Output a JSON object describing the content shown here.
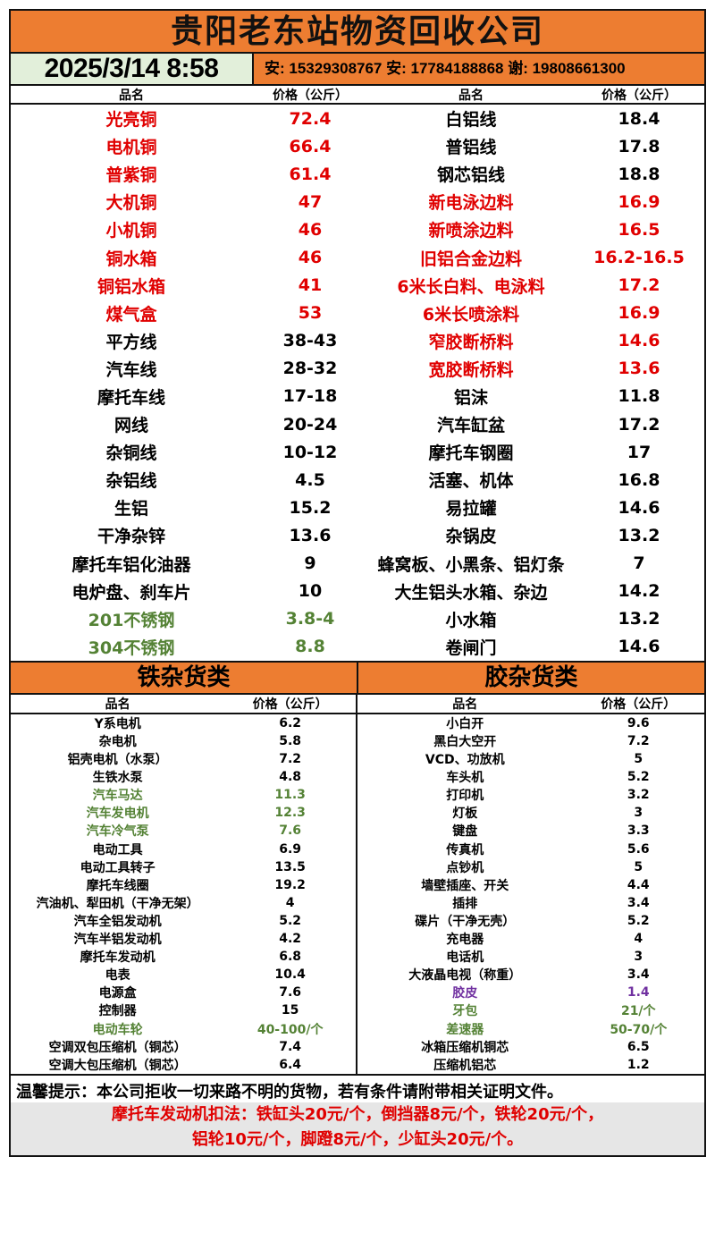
{
  "title": "贵阳老东站物资回收公司",
  "datetime": "2025/3/14 8:58",
  "phones": "安: 15329308767 安: 17784188868 谢: 19808661300",
  "colors": {
    "accent": "#ed7d31",
    "red": "#e00000",
    "green": "#548235",
    "purple": "#7030a0",
    "date_bg": "#e2efda"
  },
  "headers": {
    "name": "品名",
    "price": "价格（公斤）"
  },
  "top_rows": [
    {
      "n1": "光亮铜",
      "p1": "72.4",
      "c1": "red",
      "n2": "白铝线",
      "p2": "18.4",
      "c2": ""
    },
    {
      "n1": "电机铜",
      "p1": "66.4",
      "c1": "red",
      "n2": "普铝线",
      "p2": "17.8",
      "c2": ""
    },
    {
      "n1": "普紫铜",
      "p1": "61.4",
      "c1": "red",
      "n2": "钢芯铝线",
      "p2": "18.8",
      "c2": ""
    },
    {
      "n1": "大机铜",
      "p1": "47",
      "c1": "red",
      "n2": "新电泳边料",
      "p2": "16.9",
      "c2": "red"
    },
    {
      "n1": "小机铜",
      "p1": "46",
      "c1": "red",
      "n2": "新喷涂边料",
      "p2": "16.5",
      "c2": "red"
    },
    {
      "n1": "铜水箱",
      "p1": "46",
      "c1": "red",
      "n2": "旧铝合金边料",
      "p2": "16.2-16.5",
      "c2": "red"
    },
    {
      "n1": "铜铝水箱",
      "p1": "41",
      "c1": "red",
      "n2": "6米长白料、电泳料",
      "p2": "17.2",
      "c2": "red"
    },
    {
      "n1": "煤气盒",
      "p1": "53",
      "c1": "red",
      "n2": "6米长喷涂料",
      "p2": "16.9",
      "c2": "red"
    },
    {
      "n1": "平方线",
      "p1": "38-43",
      "c1": "",
      "n2": "窄胶断桥料",
      "p2": "14.6",
      "c2": "red"
    },
    {
      "n1": "汽车线",
      "p1": "28-32",
      "c1": "",
      "n2": "宽胶断桥料",
      "p2": "13.6",
      "c2": "red"
    },
    {
      "n1": "摩托车线",
      "p1": "17-18",
      "c1": "",
      "n2": "铝沫",
      "p2": "11.8",
      "c2": ""
    },
    {
      "n1": "网线",
      "p1": "20-24",
      "c1": "",
      "n2": "汽车缸盆",
      "p2": "17.2",
      "c2": ""
    },
    {
      "n1": "杂铜线",
      "p1": "10-12",
      "c1": "",
      "n2": "摩托车钢圈",
      "p2": "17",
      "c2": ""
    },
    {
      "n1": "杂铝线",
      "p1": "4.5",
      "c1": "",
      "n2": "活塞、机体",
      "p2": "16.8",
      "c2": ""
    },
    {
      "n1": "生铝",
      "p1": "15.2",
      "c1": "",
      "n2": "易拉罐",
      "p2": "14.6",
      "c2": ""
    },
    {
      "n1": "干净杂锌",
      "p1": "13.6",
      "c1": "",
      "n2": "杂锅皮",
      "p2": "13.2",
      "c2": ""
    },
    {
      "n1": "摩托车铝化油器",
      "p1": "9",
      "c1": "",
      "n2": "蜂窝板、小黑条、铝灯条",
      "p2": "7",
      "c2": ""
    },
    {
      "n1": "电炉盘、刹车片",
      "p1": "10",
      "c1": "",
      "n2": "大生铝头水箱、杂边",
      "p2": "14.2",
      "c2": ""
    },
    {
      "n1": "201不锈钢",
      "p1": "3.8-4",
      "c1": "green",
      "n2": "小水箱",
      "p2": "13.2",
      "c2": ""
    },
    {
      "n1": "304不锈钢",
      "p1": "8.8",
      "c1": "green",
      "n2": "卷闸门",
      "p2": "14.6",
      "c2": ""
    }
  ],
  "iron": {
    "title": "铁杂货类",
    "rows": [
      {
        "n": "Y系电机",
        "p": "6.2",
        "c": ""
      },
      {
        "n": "杂电机",
        "p": "5.8",
        "c": ""
      },
      {
        "n": "铝壳电机（水泵）",
        "p": "7.2",
        "c": ""
      },
      {
        "n": "生铁水泵",
        "p": "4.8",
        "c": ""
      },
      {
        "n": "汽车马达",
        "p": "11.3",
        "c": "green"
      },
      {
        "n": "汽车发电机",
        "p": "12.3",
        "c": "green"
      },
      {
        "n": "汽车冷气泵",
        "p": "7.6",
        "c": "green"
      },
      {
        "n": "电动工具",
        "p": "6.9",
        "c": ""
      },
      {
        "n": "电动工具转子",
        "p": "13.5",
        "c": ""
      },
      {
        "n": "摩托车线圈",
        "p": "19.2",
        "c": ""
      },
      {
        "n": "汽油机、犁田机（干净无架）",
        "p": "4",
        "c": ""
      },
      {
        "n": "汽车全铝发动机",
        "p": "5.2",
        "c": ""
      },
      {
        "n": "汽车半铝发动机",
        "p": "4.2",
        "c": ""
      },
      {
        "n": "摩托车发动机",
        "p": "6.8",
        "c": ""
      },
      {
        "n": "电表",
        "p": "10.4",
        "c": ""
      },
      {
        "n": "电源盒",
        "p": "7.6",
        "c": ""
      },
      {
        "n": "控制器",
        "p": "15",
        "c": ""
      },
      {
        "n": "电动车轮",
        "p": "40-100/个",
        "c": "green"
      },
      {
        "n": "空调双包压缩机（铜芯）",
        "p": "7.4",
        "c": ""
      },
      {
        "n": "空调大包压缩机（铜芯）",
        "p": "6.4",
        "c": ""
      }
    ]
  },
  "rubber": {
    "title": "胶杂货类",
    "rows": [
      {
        "n": "小白开",
        "p": "9.6",
        "c": ""
      },
      {
        "n": "黑白大空开",
        "p": "7.2",
        "c": ""
      },
      {
        "n": "VCD、功放机",
        "p": "5",
        "c": ""
      },
      {
        "n": "车头机",
        "p": "5.2",
        "c": ""
      },
      {
        "n": "打印机",
        "p": "3.2",
        "c": ""
      },
      {
        "n": "灯板",
        "p": "3",
        "c": ""
      },
      {
        "n": "键盘",
        "p": "3.3",
        "c": ""
      },
      {
        "n": "传真机",
        "p": "5.6",
        "c": ""
      },
      {
        "n": "点钞机",
        "p": "5",
        "c": ""
      },
      {
        "n": "墙壁插座、开关",
        "p": "4.4",
        "c": ""
      },
      {
        "n": "插排",
        "p": "3.4",
        "c": ""
      },
      {
        "n": "碟片（干净无壳）",
        "p": "5.2",
        "c": ""
      },
      {
        "n": "充电器",
        "p": "4",
        "c": ""
      },
      {
        "n": "电话机",
        "p": "3",
        "c": ""
      },
      {
        "n": "大液晶电视（称重）",
        "p": "3.4",
        "c": ""
      },
      {
        "n": "胶皮",
        "p": "1.4",
        "c": "purple"
      },
      {
        "n": "牙包",
        "p": "21/个",
        "c": "green"
      },
      {
        "n": "差速器",
        "p": "50-70/个",
        "c": "green"
      },
      {
        "n": "冰箱压缩机铜芯",
        "p": "6.5",
        "c": ""
      },
      {
        "n": "压缩机铝芯",
        "p": "1.2",
        "c": ""
      }
    ]
  },
  "footer": {
    "notice": "温馨提示：本公司拒收一切来路不明的货物，若有条件请附带相关证明文件。",
    "deduct_line1": "摩托车发动机扣法：铁缸头20元/个，倒挡器8元/个，铁轮20元/个，",
    "deduct_line2": "铝轮10元/个，脚蹬8元/个，少缸头20元/个。"
  }
}
